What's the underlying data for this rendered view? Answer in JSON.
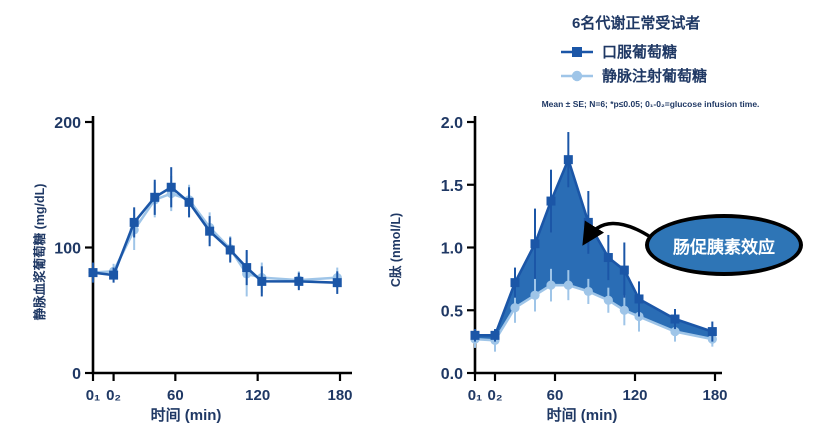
{
  "colors": {
    "dark_blue": "#1B56A7",
    "light_blue": "#9FC5E8",
    "fill_blue": "#2A6DB5",
    "navy_text": "#1F3864",
    "axis_black": "#000000",
    "annotation_fill": "#2E75B6",
    "annotation_border": "#000000",
    "annotation_text": "#FFFFFF"
  },
  "legend": {
    "title": "6名代谢正常受试者",
    "items": [
      {
        "label": "口服葡萄糖",
        "marker": "square-marker",
        "color": "#1B56A7"
      },
      {
        "label": "静脉注射葡萄糖",
        "marker": "circle-marker",
        "color": "#9FC5E8"
      }
    ],
    "note": "Mean ± SE; N=6; *p≤0.05; 0₁-0₂=glucose infusion time."
  },
  "annotation": {
    "label": "肠促胰素效应"
  },
  "chart_data": [
    {
      "id": "plasma-glucose",
      "type": "line",
      "xlabel": "时间 (min)",
      "ylabel": "静脉血浆葡萄糖 (mg/dL)",
      "x": [
        0,
        15,
        30,
        45,
        57,
        70,
        85,
        100,
        112,
        123,
        150,
        178
      ],
      "xticks": [
        {
          "t": 0,
          "label": "0₁"
        },
        {
          "t": 15,
          "label": "0₂"
        },
        {
          "t": 60,
          "label": "60"
        },
        {
          "t": 120,
          "label": "120"
        },
        {
          "t": 180,
          "label": "180"
        }
      ],
      "ylim": [
        0,
        200
      ],
      "yticks": [
        {
          "value": 0,
          "label": "0"
        },
        {
          "value": 100,
          "label": "100"
        },
        {
          "value": 200,
          "label": "200"
        }
      ],
      "grid": false,
      "fill_between": false,
      "series": [
        {
          "name": "口服葡萄糖",
          "marker": "square",
          "color": "#1B56A7",
          "values": [
            80,
            78,
            120,
            140,
            148,
            136,
            113,
            98,
            84,
            73,
            73,
            72
          ],
          "err": [
            8,
            6,
            12,
            14,
            16,
            12,
            12,
            10,
            14,
            12,
            7,
            9
          ]
        },
        {
          "name": "静脉注射葡萄糖",
          "marker": "circle",
          "color": "#9FC5E8",
          "values": [
            80,
            81,
            114,
            138,
            143,
            138,
            116,
            99,
            79,
            76,
            74,
            76
          ],
          "err": [
            6,
            6,
            16,
            14,
            14,
            12,
            12,
            10,
            18,
            12,
            7,
            8
          ]
        }
      ]
    },
    {
      "id": "c-peptide",
      "type": "line",
      "xlabel": "时间 (min)",
      "ylabel": "C肽 (nmol/L)",
      "x": [
        0,
        15,
        30,
        45,
        57,
        70,
        85,
        100,
        112,
        123,
        150,
        178
      ],
      "xticks": [
        {
          "t": 0,
          "label": "0₁"
        },
        {
          "t": 15,
          "label": "0₂"
        },
        {
          "t": 60,
          "label": "60"
        },
        {
          "t": 120,
          "label": "120"
        },
        {
          "t": 180,
          "label": "180"
        }
      ],
      "ylim": [
        0,
        2.0
      ],
      "yticks": [
        {
          "value": 0,
          "label": "0.0"
        },
        {
          "value": 0.5,
          "label": "0.5"
        },
        {
          "value": 1.0,
          "label": "1.0"
        },
        {
          "value": 1.5,
          "label": "1.5"
        },
        {
          "value": 2.0,
          "label": "2.0"
        }
      ],
      "grid": false,
      "fill_between": true,
      "fill": "#2A6DB5",
      "series": [
        {
          "name": "口服葡萄糖",
          "marker": "square",
          "color": "#1B56A7",
          "values": [
            0.3,
            0.3,
            0.72,
            1.03,
            1.37,
            1.7,
            1.2,
            0.92,
            0.82,
            0.59,
            0.43,
            0.33
          ],
          "err": [
            0.05,
            0.05,
            0.12,
            0.28,
            0.25,
            0.22,
            0.25,
            0.18,
            0.22,
            0.14,
            0.08,
            0.08
          ]
        },
        {
          "name": "静脉注射葡萄糖",
          "marker": "circle",
          "color": "#9FC5E8",
          "values": [
            0.27,
            0.26,
            0.52,
            0.62,
            0.7,
            0.7,
            0.65,
            0.58,
            0.5,
            0.45,
            0.33,
            0.27
          ],
          "err": [
            0.07,
            0.09,
            0.12,
            0.13,
            0.13,
            0.12,
            0.1,
            0.1,
            0.12,
            0.12,
            0.08,
            0.06
          ]
        }
      ]
    }
  ]
}
